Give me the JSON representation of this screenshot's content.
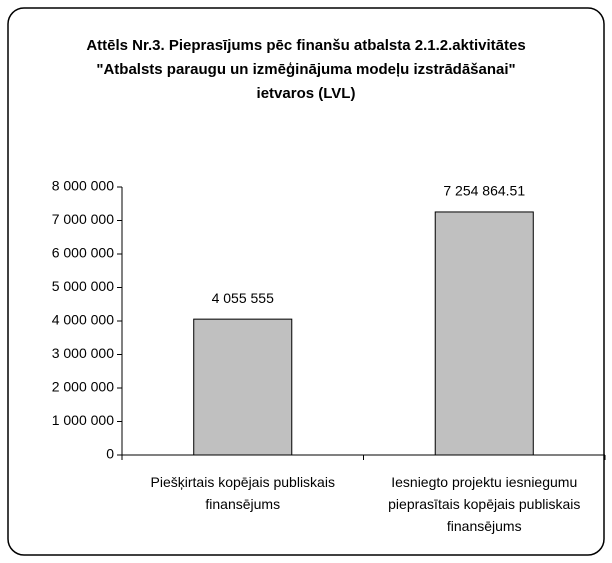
{
  "chart_data": {
    "type": "bar",
    "title": "Attēls Nr.3. Pieprasījums pēc finanšu atbalsta 2.1.2.aktivitātes \"Atbalsts paraugu un izmēģinājuma modeļu izstrādāšanai\" ietvaros (LVL)",
    "categories": [
      "Piešķirtais kopējais publiskais finansējums",
      "Iesniegto projektu iesniegumu pieprasītais kopējais publiskais finansējums"
    ],
    "values": [
      4055555,
      7254864.51
    ],
    "value_labels": [
      "4 055 555",
      "7 254 864.51"
    ],
    "color": "#c0c0c0",
    "ylim": [
      0,
      8000000
    ],
    "yticks": [
      0,
      {
        "value": 1000000,
        "label": "1 000 000"
      },
      {
        "value": 2000000,
        "label": "2 000 000"
      },
      {
        "value": 3000000,
        "label": "3 000 000"
      },
      {
        "value": 4000000,
        "label": "4 000 000"
      },
      {
        "value": 5000000,
        "label": "5 000 000"
      },
      {
        "value": 6000000,
        "label": "6 000 000"
      },
      {
        "value": 7000000,
        "label": "7 000 000"
      },
      {
        "value": 8000000,
        "label": "8 000 000"
      }
    ],
    "grid": false
  }
}
